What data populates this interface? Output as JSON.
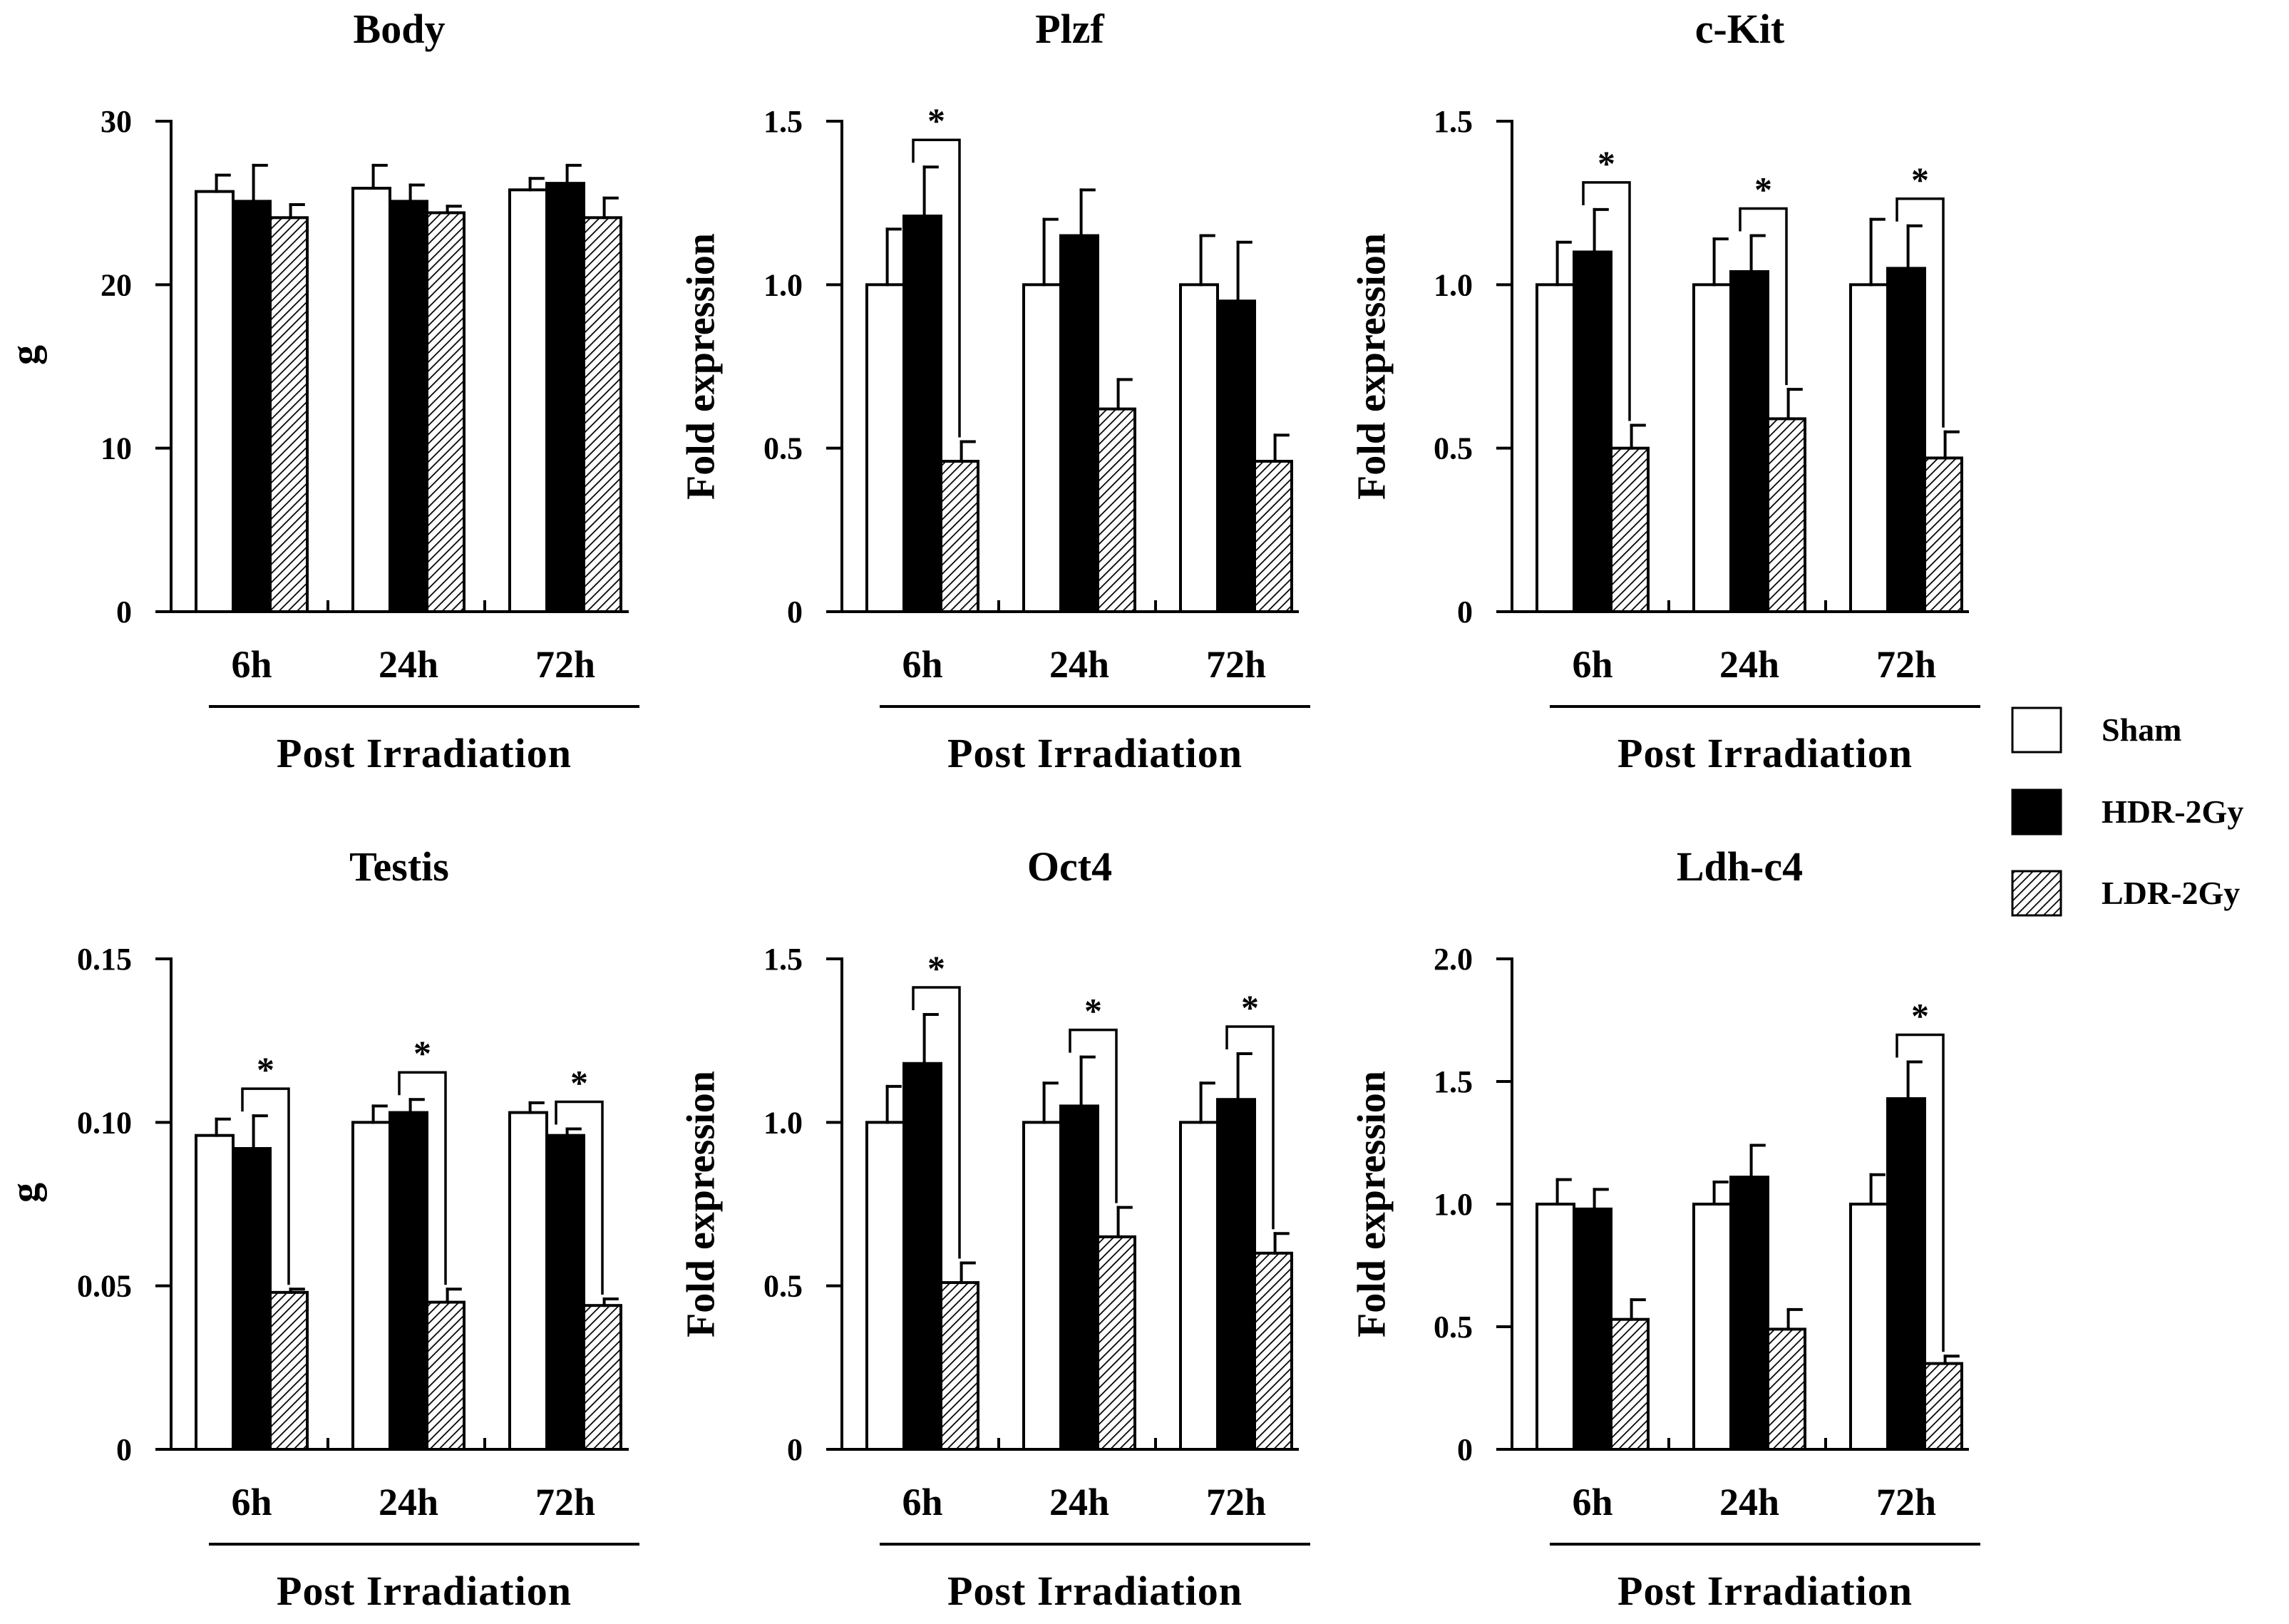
{
  "legend": {
    "items": [
      {
        "name": "Sham",
        "fill": "white"
      },
      {
        "name": "HDR-2Gy",
        "fill": "black"
      },
      {
        "name": "LDR-2Gy",
        "fill": "hatch"
      }
    ]
  },
  "colors": {
    "ink": "#000000",
    "background": "#ffffff"
  },
  "chart_data": [
    {
      "type": "bar",
      "title": "Body",
      "ylabel": "g",
      "xlabel": "Post Irradiation",
      "categories": [
        "6h",
        "24h",
        "72h"
      ],
      "ylim": [
        0,
        30
      ],
      "yticks": [
        0,
        10,
        20,
        30
      ],
      "yticklabels": [
        "0",
        "10",
        "20",
        "30"
      ],
      "series": [
        {
          "name": "Sham",
          "values": [
            25.7,
            25.9,
            25.8
          ],
          "errors": [
            1.0,
            1.4,
            0.7
          ]
        },
        {
          "name": "HDR-2Gy",
          "values": [
            25.1,
            25.1,
            26.2
          ],
          "errors": [
            2.2,
            1.0,
            1.1
          ]
        },
        {
          "name": "LDR-2Gy",
          "values": [
            24.1,
            24.4,
            24.1
          ],
          "errors": [
            0.8,
            0.4,
            1.2
          ]
        }
      ],
      "significance": []
    },
    {
      "type": "bar",
      "title": "Plzf",
      "ylabel": "Fold expression",
      "xlabel": "Post Irradiation",
      "categories": [
        "6h",
        "24h",
        "72h"
      ],
      "ylim": [
        0,
        1.5
      ],
      "yticks": [
        0,
        0.5,
        1.0,
        1.5
      ],
      "yticklabels": [
        "0",
        "0.5",
        "1.0",
        "1.5"
      ],
      "series": [
        {
          "name": "Sham",
          "values": [
            1.0,
            1.0,
            1.0
          ],
          "errors": [
            0.17,
            0.2,
            0.15
          ]
        },
        {
          "name": "HDR-2Gy",
          "values": [
            1.21,
            1.15,
            0.95
          ],
          "errors": [
            0.15,
            0.14,
            0.18
          ]
        },
        {
          "name": "LDR-2Gy",
          "values": [
            0.46,
            0.62,
            0.46
          ],
          "errors": [
            0.06,
            0.09,
            0.08
          ]
        }
      ],
      "significance": [
        {
          "category": 0,
          "label": "*"
        }
      ]
    },
    {
      "type": "bar",
      "title": "c-Kit",
      "ylabel": "Fold expression",
      "xlabel": "Post Irradiation",
      "categories": [
        "6h",
        "24h",
        "72h"
      ],
      "ylim": [
        0,
        1.5
      ],
      "yticks": [
        0,
        0.5,
        1.0,
        1.5
      ],
      "yticklabels": [
        "0",
        "0.5",
        "1.0",
        "1.5"
      ],
      "series": [
        {
          "name": "Sham",
          "values": [
            1.0,
            1.0,
            1.0
          ],
          "errors": [
            0.13,
            0.14,
            0.2
          ]
        },
        {
          "name": "HDR-2Gy",
          "values": [
            1.1,
            1.04,
            1.05
          ],
          "errors": [
            0.13,
            0.11,
            0.13
          ]
        },
        {
          "name": "LDR-2Gy",
          "values": [
            0.5,
            0.59,
            0.47
          ],
          "errors": [
            0.07,
            0.09,
            0.08
          ]
        }
      ],
      "significance": [
        {
          "category": 0,
          "label": "*"
        },
        {
          "category": 1,
          "label": "*"
        },
        {
          "category": 2,
          "label": "*"
        }
      ]
    },
    {
      "type": "bar",
      "title": "Testis",
      "ylabel": "g",
      "xlabel": "Post Irradiation",
      "categories": [
        "6h",
        "24h",
        "72h"
      ],
      "ylim": [
        0,
        0.15
      ],
      "yticks": [
        0,
        0.05,
        0.1,
        0.15
      ],
      "yticklabels": [
        "0",
        "0.05",
        "0.10",
        "0.15"
      ],
      "series": [
        {
          "name": "Sham",
          "values": [
            0.096,
            0.1,
            0.103
          ],
          "errors": [
            0.005,
            0.005,
            0.003
          ]
        },
        {
          "name": "HDR-2Gy",
          "values": [
            0.092,
            0.103,
            0.096
          ],
          "errors": [
            0.01,
            0.004,
            0.002
          ]
        },
        {
          "name": "LDR-2Gy",
          "values": [
            0.048,
            0.045,
            0.044
          ],
          "errors": [
            0.001,
            0.004,
            0.002
          ]
        }
      ],
      "significance": [
        {
          "category": 0,
          "label": "*"
        },
        {
          "category": 1,
          "label": "*"
        },
        {
          "category": 2,
          "label": "*"
        }
      ]
    },
    {
      "type": "bar",
      "title": "Oct4",
      "ylabel": "Fold expression",
      "xlabel": "Post Irradiation",
      "categories": [
        "6h",
        "24h",
        "72h"
      ],
      "ylim": [
        0,
        1.5
      ],
      "yticks": [
        0,
        0.5,
        1.0,
        1.5
      ],
      "yticklabels": [
        "0",
        "0.5",
        "1.0",
        "1.5"
      ],
      "series": [
        {
          "name": "Sham",
          "values": [
            1.0,
            1.0,
            1.0
          ],
          "errors": [
            0.11,
            0.12,
            0.12
          ]
        },
        {
          "name": "HDR-2Gy",
          "values": [
            1.18,
            1.05,
            1.07
          ],
          "errors": [
            0.15,
            0.15,
            0.14
          ]
        },
        {
          "name": "LDR-2Gy",
          "values": [
            0.51,
            0.65,
            0.6
          ],
          "errors": [
            0.06,
            0.09,
            0.06
          ]
        }
      ],
      "significance": [
        {
          "category": 0,
          "label": "*"
        },
        {
          "category": 1,
          "label": "*"
        },
        {
          "category": 2,
          "label": "*"
        }
      ]
    },
    {
      "type": "bar",
      "title": "Ldh-c4",
      "ylabel": "Fold expression",
      "xlabel": "Post Irradiation",
      "categories": [
        "6h",
        "24h",
        "72h"
      ],
      "ylim": [
        0,
        2.0
      ],
      "yticks": [
        0,
        0.5,
        1.0,
        1.5,
        2.0
      ],
      "yticklabels": [
        "0",
        "0.5",
        "1.0",
        "1.5",
        "2.0"
      ],
      "series": [
        {
          "name": "Sham",
          "values": [
            1.0,
            1.0,
            1.0
          ],
          "errors": [
            0.1,
            0.09,
            0.12
          ]
        },
        {
          "name": "HDR-2Gy",
          "values": [
            0.98,
            1.11,
            1.43
          ],
          "errors": [
            0.08,
            0.13,
            0.15
          ]
        },
        {
          "name": "LDR-2Gy",
          "values": [
            0.53,
            0.49,
            0.35
          ],
          "errors": [
            0.08,
            0.08,
            0.03
          ]
        }
      ],
      "significance": [
        {
          "category": 2,
          "label": "*"
        }
      ]
    }
  ]
}
